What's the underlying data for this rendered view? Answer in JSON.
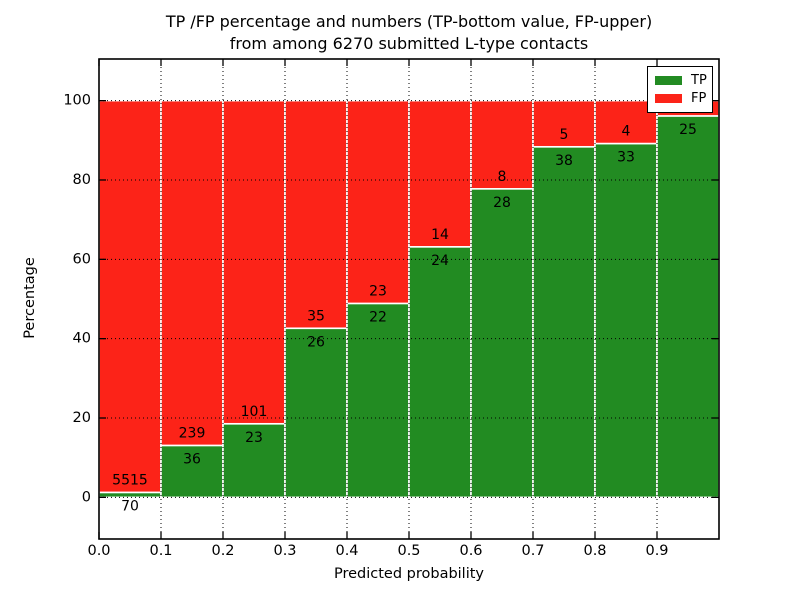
{
  "figure": {
    "title_line1": "TP /FP percentage and numbers (TP-bottom value, FP-upper)",
    "title_line2": "from among 6270 submitted L-type contacts"
  },
  "chart_data": {
    "type": "bar",
    "variant": "stacked-100-percent",
    "title": "TP /FP percentage and numbers (TP-bottom value, FP-upper)\nfrom among 6270 submitted L-type contacts",
    "xlabel": "Predicted probability",
    "ylabel": "Percentage",
    "bin_edges": [
      0.0,
      0.1,
      0.2,
      0.3,
      0.4,
      0.5,
      0.6,
      0.7,
      0.8,
      0.9,
      1.0
    ],
    "categories": [
      "0.0-0.1",
      "0.1-0.2",
      "0.2-0.3",
      "0.3-0.4",
      "0.4-0.5",
      "0.5-0.6",
      "0.6-0.7",
      "0.7-0.8",
      "0.8-0.9",
      "0.9-1.0"
    ],
    "series": [
      {
        "name": "TP",
        "color": "#228B22",
        "counts": [
          70,
          36,
          23,
          26,
          22,
          24,
          28,
          38,
          33,
          25
        ]
      },
      {
        "name": "FP",
        "color": "#FC2318",
        "counts": [
          5515,
          239,
          101,
          35,
          23,
          14,
          8,
          5,
          4,
          1
        ]
      }
    ],
    "bar_label_note": "TP count printed below the TP/FP boundary, FP count printed above it",
    "x_ticks": [
      "0.0",
      "0.1",
      "0.2",
      "0.3",
      "0.4",
      "0.5",
      "0.6",
      "0.7",
      "0.8",
      "0.9"
    ],
    "y_ticks": [
      0,
      20,
      40,
      60,
      80,
      100
    ],
    "xlim": [
      0.0,
      1.0
    ],
    "ylim": [
      -10.5,
      110.5
    ],
    "grid": {
      "on": true,
      "style": "dotted",
      "color": "#000000"
    },
    "legend": {
      "position": "upper-right",
      "labels": [
        "TP",
        "FP"
      ]
    },
    "colors": {
      "background": "#FFFFFF",
      "axis": "#000000",
      "bar_edge": "#FFFFFF"
    }
  }
}
